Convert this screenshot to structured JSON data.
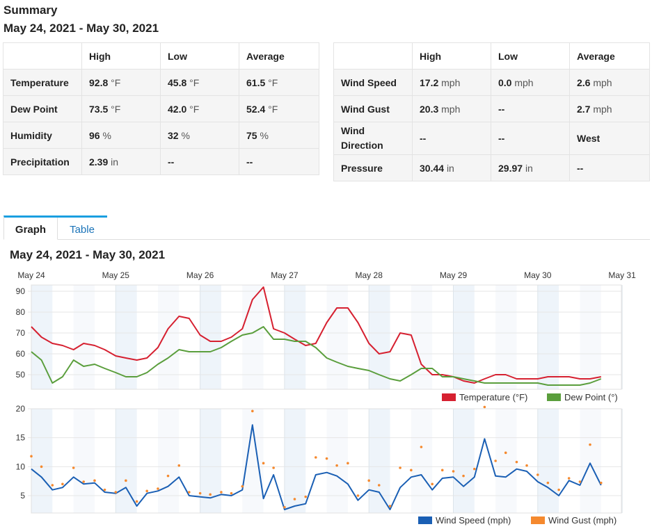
{
  "summary": {
    "title": "Summary",
    "range": "May 24, 2021 - May 30, 2021",
    "left_table": {
      "headers": [
        "",
        "High",
        "Low",
        "Average"
      ],
      "rows": [
        {
          "label": "Temperature",
          "high": "92.8",
          "high_unit": "°F",
          "low": "45.8",
          "low_unit": "°F",
          "avg": "61.5",
          "avg_unit": "°F"
        },
        {
          "label": "Dew Point",
          "high": "73.5",
          "high_unit": "°F",
          "low": "42.0",
          "low_unit": "°F",
          "avg": "52.4",
          "avg_unit": "°F"
        },
        {
          "label": "Humidity",
          "high": "96",
          "high_unit": "%",
          "low": "32",
          "low_unit": "%",
          "avg": "75",
          "avg_unit": "%"
        },
        {
          "label": "Precipitation",
          "high": "2.39",
          "high_unit": "in",
          "low": "--",
          "low_unit": "",
          "avg": "--",
          "avg_unit": ""
        }
      ]
    },
    "right_table": {
      "headers": [
        "",
        "High",
        "Low",
        "Average"
      ],
      "rows": [
        {
          "label": "Wind Speed",
          "high": "17.2",
          "high_unit": "mph",
          "low": "0.0",
          "low_unit": "mph",
          "avg": "2.6",
          "avg_unit": "mph"
        },
        {
          "label": "Wind Gust",
          "high": "20.3",
          "high_unit": "mph",
          "low": "--",
          "low_unit": "",
          "avg": "2.7",
          "avg_unit": "mph"
        },
        {
          "label": "Wind Direction",
          "high": "--",
          "high_unit": "",
          "low": "--",
          "low_unit": "",
          "avg": "West",
          "avg_unit": ""
        },
        {
          "label": "Pressure",
          "high": "30.44",
          "high_unit": "in",
          "low": "29.97",
          "low_unit": "in",
          "avg": "--",
          "avg_unit": ""
        }
      ]
    }
  },
  "tabs": {
    "graph": "Graph",
    "table": "Table"
  },
  "graph_title": "May 24, 2021 - May 30, 2021",
  "colors": {
    "temperature": "#d62030",
    "dew_point": "#5a9e3c",
    "wind_speed": "#1a5fb4",
    "wind_gust": "#f5892e",
    "tab_accent": "#1a9fe0"
  },
  "chart_data": [
    {
      "type": "line",
      "x_ticks": [
        "May 24",
        "May 25",
        "May 26",
        "May 27",
        "May 28",
        "May 29",
        "May 30",
        "May 31"
      ],
      "ylim": [
        43,
        93
      ],
      "yticks": [
        50,
        60,
        70,
        80,
        90
      ],
      "legend_position": "bottom-right",
      "x_unit": "days from May 24",
      "series": [
        {
          "name": "Temperature (°F)",
          "x": [
            0.0,
            0.12,
            0.25,
            0.37,
            0.5,
            0.62,
            0.75,
            0.87,
            1.0,
            1.12,
            1.25,
            1.37,
            1.5,
            1.62,
            1.75,
            1.87,
            2.0,
            2.12,
            2.25,
            2.37,
            2.5,
            2.62,
            2.75,
            2.87,
            3.0,
            3.12,
            3.25,
            3.37,
            3.5,
            3.62,
            3.75,
            3.87,
            4.0,
            4.12,
            4.25,
            4.37,
            4.5,
            4.62,
            4.75,
            4.87,
            5.0,
            5.12,
            5.25,
            5.37,
            5.5,
            5.62,
            5.75,
            5.87,
            6.0,
            6.12,
            6.25,
            6.37,
            6.5,
            6.62,
            6.75
          ],
          "values": [
            73,
            68,
            65,
            64,
            62,
            65,
            64,
            62,
            59,
            58,
            57,
            58,
            63,
            72,
            78,
            77,
            69,
            66,
            66,
            68,
            72,
            86,
            92,
            72,
            70,
            67,
            64,
            65,
            75,
            82,
            82,
            75,
            65,
            60,
            61,
            70,
            69,
            55,
            50,
            50,
            49,
            47,
            46,
            48,
            50,
            50,
            48,
            48,
            48,
            49,
            49,
            49,
            48,
            48,
            49
          ]
        },
        {
          "name": "Dew Point (°)",
          "x": [
            0.0,
            0.12,
            0.25,
            0.37,
            0.5,
            0.62,
            0.75,
            0.87,
            1.0,
            1.12,
            1.25,
            1.37,
            1.5,
            1.62,
            1.75,
            1.87,
            2.0,
            2.12,
            2.25,
            2.37,
            2.5,
            2.62,
            2.75,
            2.87,
            3.0,
            3.12,
            3.25,
            3.37,
            3.5,
            3.62,
            3.75,
            3.87,
            4.0,
            4.12,
            4.25,
            4.37,
            4.5,
            4.62,
            4.75,
            4.87,
            5.0,
            5.12,
            5.25,
            5.37,
            5.5,
            5.62,
            5.75,
            5.87,
            6.0,
            6.12,
            6.25,
            6.37,
            6.5,
            6.62,
            6.75
          ],
          "values": [
            61,
            57,
            46,
            49,
            57,
            54,
            55,
            53,
            51,
            49,
            49,
            51,
            55,
            58,
            62,
            61,
            61,
            61,
            63,
            66,
            69,
            70,
            73,
            67,
            67,
            66,
            66,
            63,
            58,
            56,
            54,
            53,
            52,
            50,
            48,
            47,
            50,
            53,
            53,
            49,
            49,
            48,
            47,
            46,
            46,
            46,
            46,
            46,
            46,
            45,
            45,
            45,
            45,
            46,
            48
          ]
        }
      ]
    },
    {
      "type": "line",
      "x_ticks": [
        "May 24",
        "May 25",
        "May 26",
        "May 27",
        "May 28",
        "May 29",
        "May 30",
        "May 31"
      ],
      "ylim": [
        2,
        20
      ],
      "yticks": [
        5,
        10,
        15,
        20
      ],
      "legend_position": "bottom-right",
      "x_unit": "days from May 24",
      "series": [
        {
          "name": "Wind Speed (mph)",
          "x": [
            0.0,
            0.12,
            0.25,
            0.37,
            0.5,
            0.62,
            0.75,
            0.87,
            1.0,
            1.12,
            1.25,
            1.37,
            1.5,
            1.62,
            1.75,
            1.87,
            2.0,
            2.12,
            2.25,
            2.37,
            2.5,
            2.62,
            2.75,
            2.87,
            3.0,
            3.12,
            3.25,
            3.37,
            3.5,
            3.62,
            3.75,
            3.87,
            4.0,
            4.12,
            4.25,
            4.37,
            4.5,
            4.62,
            4.75,
            4.87,
            5.0,
            5.12,
            5.25,
            5.37,
            5.5,
            5.62,
            5.75,
            5.87,
            6.0,
            6.12,
            6.25,
            6.37,
            6.5,
            6.62,
            6.75
          ],
          "values": [
            9.6,
            8.2,
            6.0,
            6.4,
            8.2,
            7.0,
            7.2,
            5.6,
            5.4,
            6.4,
            3.2,
            5.4,
            5.8,
            6.6,
            8.2,
            5.0,
            4.8,
            4.6,
            5.2,
            5.0,
            6.0,
            17.2,
            4.5,
            8.6,
            2.6,
            3.2,
            3.6,
            8.6,
            9.0,
            8.4,
            7.0,
            4.2,
            6.0,
            5.6,
            2.6,
            6.4,
            8.2,
            8.6,
            6.0,
            8.0,
            8.2,
            6.6,
            8.2,
            14.8,
            8.4,
            8.2,
            9.6,
            9.2,
            7.4,
            6.4,
            5.0,
            7.6,
            6.8,
            10.6,
            6.8
          ]
        },
        {
          "name": "Wind Gust (mph)",
          "x": [
            0.0,
            0.12,
            0.25,
            0.37,
            0.5,
            0.62,
            0.75,
            0.87,
            1.0,
            1.12,
            1.25,
            1.37,
            1.5,
            1.62,
            1.75,
            1.87,
            2.0,
            2.12,
            2.25,
            2.37,
            2.5,
            2.62,
            2.75,
            2.87,
            3.0,
            3.12,
            3.25,
            3.37,
            3.5,
            3.62,
            3.75,
            3.87,
            4.0,
            4.12,
            4.25,
            4.37,
            4.5,
            4.62,
            4.75,
            4.87,
            5.0,
            5.12,
            5.25,
            5.37,
            5.5,
            5.62,
            5.75,
            5.87,
            6.0,
            6.12,
            6.25,
            6.37,
            6.5,
            6.62,
            6.75
          ],
          "values": [
            11.8,
            10.0,
            6.8,
            7.0,
            9.8,
            7.4,
            7.6,
            6.0,
            5.6,
            7.6,
            4.0,
            5.8,
            6.2,
            8.4,
            10.2,
            5.6,
            5.4,
            5.2,
            5.6,
            5.4,
            6.6,
            19.6,
            10.6,
            9.8,
            3.0,
            4.4,
            4.8,
            11.6,
            11.4,
            10.2,
            10.6,
            5.0,
            7.6,
            6.8,
            3.2,
            9.8,
            9.4,
            13.4,
            7.0,
            9.4,
            9.2,
            8.4,
            9.6,
            20.3,
            11.0,
            12.4,
            10.8,
            10.2,
            8.6,
            7.2,
            6.0,
            8.0,
            7.4,
            13.8,
            7.2
          ]
        }
      ]
    }
  ]
}
